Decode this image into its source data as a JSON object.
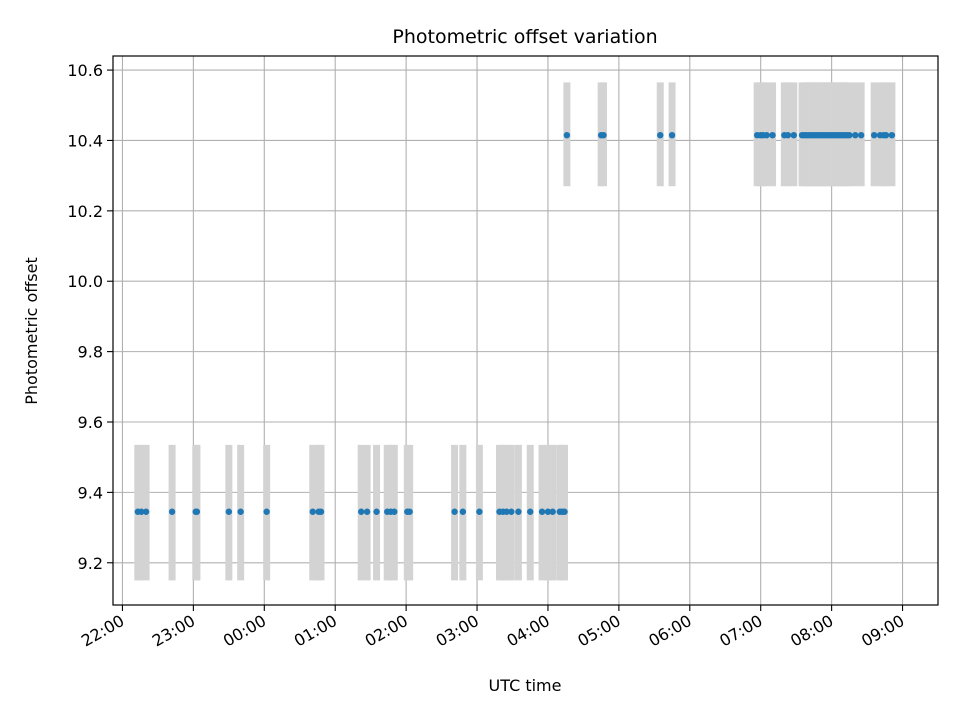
{
  "chart_data": {
    "type": "scatter",
    "title": "Photometric offset variation",
    "xlabel": "UTC time",
    "ylabel": "Photometric offset",
    "grid": true,
    "xlim": [
      "21:52",
      "09:30"
    ],
    "ylim": [
      9.08,
      10.64
    ],
    "x_ticks": [
      "22:00",
      "23:00",
      "00:00",
      "01:00",
      "02:00",
      "03:00",
      "04:00",
      "05:00",
      "06:00",
      "07:00",
      "08:00",
      "09:00"
    ],
    "y_ticks": [
      "9.2",
      "9.4",
      "9.6",
      "9.8",
      "10.0",
      "10.2",
      "10.4",
      "10.6"
    ],
    "point_color": "#1f77b4",
    "band_color": "#d3d3d3",
    "series": [
      {
        "y": 9.345,
        "band": [
          9.15,
          9.535
        ],
        "times": [
          "22:13",
          "22:16",
          "22:20",
          "22:42",
          "23:02",
          "23:03",
          "23:30",
          "23:40",
          "00:02",
          "00:41",
          "00:46",
          "00:48",
          "01:22",
          "01:27",
          "01:35",
          "01:44",
          "01:47",
          "01:50",
          "02:01",
          "02:03",
          "02:41",
          "02:48",
          "03:02",
          "03:19",
          "03:22",
          "03:25",
          "03:29",
          "03:35",
          "03:45",
          "03:55",
          "04:00",
          "04:04",
          "04:10",
          "04:12",
          "04:14"
        ]
      },
      {
        "y": 10.415,
        "band": [
          10.27,
          10.565
        ],
        "times": [
          "04:16",
          "04:45",
          "04:47",
          "05:35",
          "05:45",
          "06:57",
          "07:00",
          "07:02",
          "07:05",
          "07:10",
          "07:20",
          "07:23",
          "07:28",
          "07:35",
          "07:37",
          "07:39",
          "07:41",
          "07:43",
          "07:45",
          "07:47",
          "07:49",
          "07:51",
          "07:53",
          "07:55",
          "07:57",
          "07:59",
          "08:01",
          "08:03",
          "08:05",
          "08:07",
          "08:09",
          "08:11",
          "08:13",
          "08:15",
          "08:20",
          "08:25",
          "08:36",
          "08:41",
          "08:44",
          "08:46",
          "08:51"
        ]
      }
    ]
  }
}
